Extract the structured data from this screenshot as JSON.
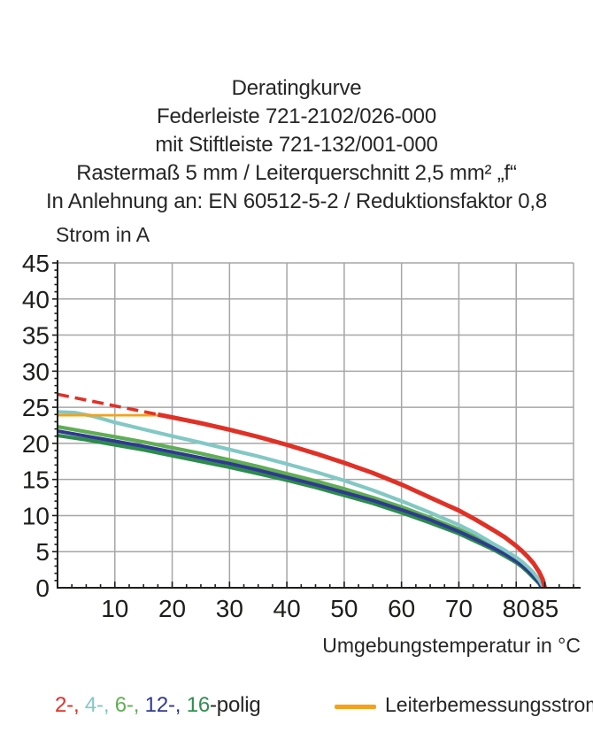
{
  "title_lines": [
    "Deratingkurve",
    "Federleiste 721-2102/026-000",
    "mit Stiftleiste 721-132/001-000",
    "Rastermaß 5 mm / Leiterquerschnitt 2,5 mm² „f“",
    "In Anlehnung an: EN 60512-5-2 / Reduktionsfaktor 0,8"
  ],
  "y_axis_title": "Strom in A",
  "x_axis_title": "Umgebungstemperatur in °C",
  "legend": {
    "poles": [
      {
        "label": "2-,",
        "color": "#e03127"
      },
      {
        "label": "4-,",
        "color": "#82c8c4"
      },
      {
        "label": "6-,",
        "color": "#5fae54"
      },
      {
        "label": "12-,",
        "color": "#2f3a8f"
      },
      {
        "label": "16",
        "color": "#2f8f4e"
      }
    ],
    "poles_suffix": "-polig",
    "poles_suffix_color": "#262626",
    "rated_current_label": "Leiterbemessungsstrom",
    "rated_current_color": "#f5a11c"
  },
  "chart_data": {
    "type": "line",
    "title": "Deratingkurve",
    "xlabel": "Umgebungstemperatur in °C",
    "ylabel": "Strom in A",
    "xlim": [
      0,
      90
    ],
    "ylim": [
      0,
      45
    ],
    "x_major_ticks": [
      10,
      20,
      30,
      40,
      50,
      60,
      70,
      80,
      85
    ],
    "x_gridlines": [
      10,
      20,
      30,
      40,
      50,
      60,
      70,
      80,
      90
    ],
    "x_minor_step": 2.5,
    "y_major_ticks": [
      0,
      5,
      10,
      15,
      20,
      25,
      30,
      35,
      40,
      45
    ],
    "y_minor_step": 1,
    "grid": true,
    "grid_color": "#a6a6a6",
    "axis_color": "#1d1d1b",
    "legend_position": "bottom",
    "series": [
      {
        "name": "16-polig",
        "color": "#2c8c4b",
        "width": 4.2,
        "dash": null,
        "points": [
          [
            0,
            21.1
          ],
          [
            5,
            20.5
          ],
          [
            10,
            19.8
          ],
          [
            15,
            19.1
          ],
          [
            20,
            18.3
          ],
          [
            25,
            17.5
          ],
          [
            30,
            16.7
          ],
          [
            35,
            15.8
          ],
          [
            40,
            14.9
          ],
          [
            45,
            13.9
          ],
          [
            50,
            12.8
          ],
          [
            55,
            11.7
          ],
          [
            60,
            10.4
          ],
          [
            65,
            9.0
          ],
          [
            70,
            7.5
          ],
          [
            73,
            6.4
          ],
          [
            76,
            5.3
          ],
          [
            78,
            4.4
          ],
          [
            80,
            3.5
          ],
          [
            81,
            2.9
          ],
          [
            82,
            2.2
          ],
          [
            83,
            1.4
          ],
          [
            84,
            0.6
          ],
          [
            84.4,
            0
          ]
        ]
      },
      {
        "name": "6-polig",
        "color": "#5fae54",
        "width": 4.2,
        "dash": null,
        "points": [
          [
            0,
            22.3
          ],
          [
            5,
            21.6
          ],
          [
            10,
            20.9
          ],
          [
            15,
            20.2
          ],
          [
            20,
            19.4
          ],
          [
            25,
            18.6
          ],
          [
            30,
            17.7
          ],
          [
            35,
            16.8
          ],
          [
            40,
            15.8
          ],
          [
            45,
            14.8
          ],
          [
            50,
            13.7
          ],
          [
            55,
            12.5
          ],
          [
            60,
            11.2
          ],
          [
            65,
            9.7
          ],
          [
            70,
            8.1
          ],
          [
            73,
            7.0
          ],
          [
            76,
            5.8
          ],
          [
            78,
            4.9
          ],
          [
            80,
            3.9
          ],
          [
            81,
            3.3
          ],
          [
            82,
            2.6
          ],
          [
            83,
            1.8
          ],
          [
            84,
            0.8
          ],
          [
            84.6,
            0
          ]
        ]
      },
      {
        "name": "12-polig",
        "color": "#2f3a8f",
        "width": 4.0,
        "dash": null,
        "points": [
          [
            0,
            21.7
          ],
          [
            5,
            21.0
          ],
          [
            10,
            20.3
          ],
          [
            15,
            19.6
          ],
          [
            20,
            18.8
          ],
          [
            25,
            18.0
          ],
          [
            30,
            17.2
          ],
          [
            35,
            16.3
          ],
          [
            40,
            15.3
          ],
          [
            45,
            14.3
          ],
          [
            50,
            13.2
          ],
          [
            55,
            12.1
          ],
          [
            60,
            10.8
          ],
          [
            65,
            9.4
          ],
          [
            70,
            7.8
          ],
          [
            73,
            6.7
          ],
          [
            76,
            5.5
          ],
          [
            78,
            4.7
          ],
          [
            80,
            3.7
          ],
          [
            81,
            3.1
          ],
          [
            82,
            2.4
          ],
          [
            83,
            1.6
          ],
          [
            84,
            0.7
          ],
          [
            84.5,
            0
          ]
        ]
      },
      {
        "name": "4-polig",
        "color": "#82c8c4",
        "width": 4.2,
        "dash": null,
        "points": [
          [
            0,
            24.35
          ],
          [
            3,
            24.25
          ],
          [
            6,
            23.8
          ],
          [
            10,
            22.9
          ],
          [
            15,
            21.95
          ],
          [
            20,
            21.0
          ],
          [
            25,
            20.1
          ],
          [
            30,
            19.15
          ],
          [
            35,
            18.2
          ],
          [
            40,
            17.15
          ],
          [
            45,
            16.05
          ],
          [
            50,
            14.85
          ],
          [
            55,
            13.5
          ],
          [
            60,
            12.0
          ],
          [
            65,
            10.4
          ],
          [
            70,
            8.7
          ],
          [
            73,
            7.5
          ],
          [
            76,
            6.1
          ],
          [
            78,
            5.2
          ],
          [
            80,
            4.2
          ],
          [
            81,
            3.6
          ],
          [
            82,
            2.9
          ],
          [
            83,
            2.1
          ],
          [
            84,
            1.1
          ],
          [
            84.8,
            0
          ]
        ]
      },
      {
        "name": "Leiterbemessungsstrom",
        "color": "#f5a11c",
        "width": 2.8,
        "dash": null,
        "points": [
          [
            0,
            23.9
          ],
          [
            18,
            23.9
          ]
        ]
      },
      {
        "name": "2-polig-dashed",
        "color": "#e03127",
        "width": 3.6,
        "dash": "13 7",
        "points": [
          [
            0,
            26.8
          ],
          [
            17.5,
            24.0
          ]
        ]
      },
      {
        "name": "2-polig",
        "color": "#e03127",
        "width": 5.0,
        "dash": null,
        "points": [
          [
            17.5,
            24.0
          ],
          [
            20,
            23.6
          ],
          [
            25,
            22.8
          ],
          [
            30,
            21.9
          ],
          [
            35,
            20.9
          ],
          [
            40,
            19.8
          ],
          [
            45,
            18.6
          ],
          [
            50,
            17.3
          ],
          [
            55,
            15.9
          ],
          [
            60,
            14.3
          ],
          [
            65,
            12.5
          ],
          [
            70,
            10.7
          ],
          [
            73,
            9.4
          ],
          [
            76,
            8.0
          ],
          [
            78,
            7.0
          ],
          [
            80,
            5.8
          ],
          [
            81,
            5.1
          ],
          [
            82,
            4.3
          ],
          [
            83,
            3.4
          ],
          [
            84,
            2.2
          ],
          [
            84.6,
            1.2
          ],
          [
            85,
            0
          ]
        ]
      }
    ]
  }
}
